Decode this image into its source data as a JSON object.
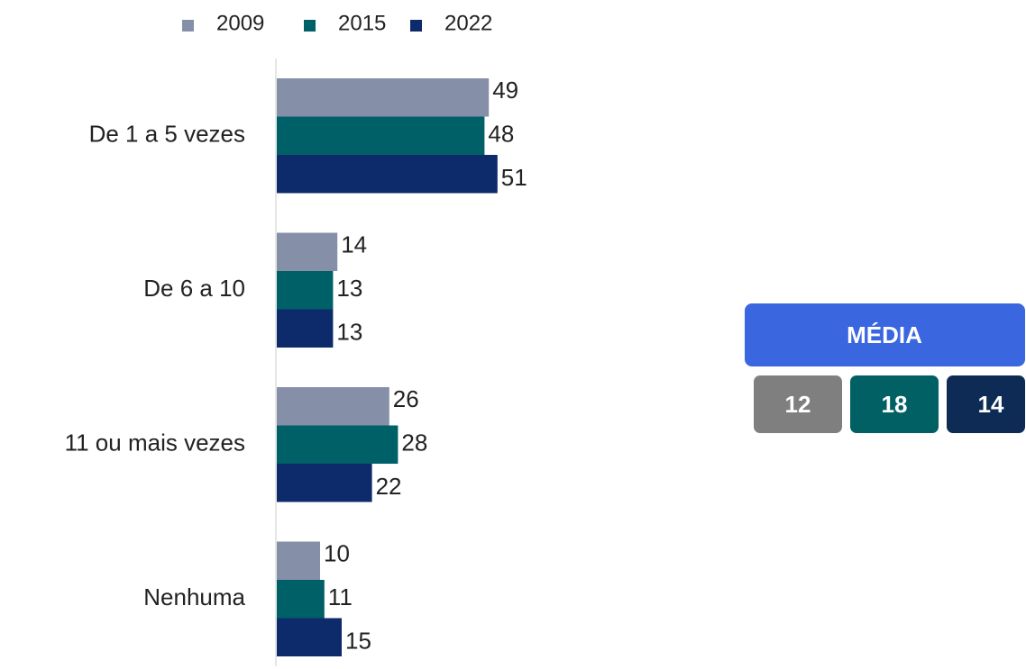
{
  "chart_data": {
    "type": "bar",
    "orientation": "horizontal",
    "categories": [
      "De 1 a 5 vezes",
      "De 6 a 10",
      "11 ou mais vezes",
      "Nenhuma"
    ],
    "series": [
      {
        "name": "2009",
        "color": "#8590a8",
        "values": [
          49,
          14,
          26,
          10
        ]
      },
      {
        "name": "2015",
        "color": "#006068",
        "values": [
          48,
          13,
          28,
          11
        ]
      },
      {
        "name": "2022",
        "color": "#0d2a6b",
        "values": [
          51,
          13,
          22,
          15
        ]
      }
    ],
    "legend": "top",
    "summary": {
      "label": "MÉDIA",
      "color": "#3a66e0",
      "colors": [
        "#7f7f7f",
        "#006064",
        "#0d2b55"
      ],
      "values": [
        12,
        18,
        14
      ]
    }
  }
}
